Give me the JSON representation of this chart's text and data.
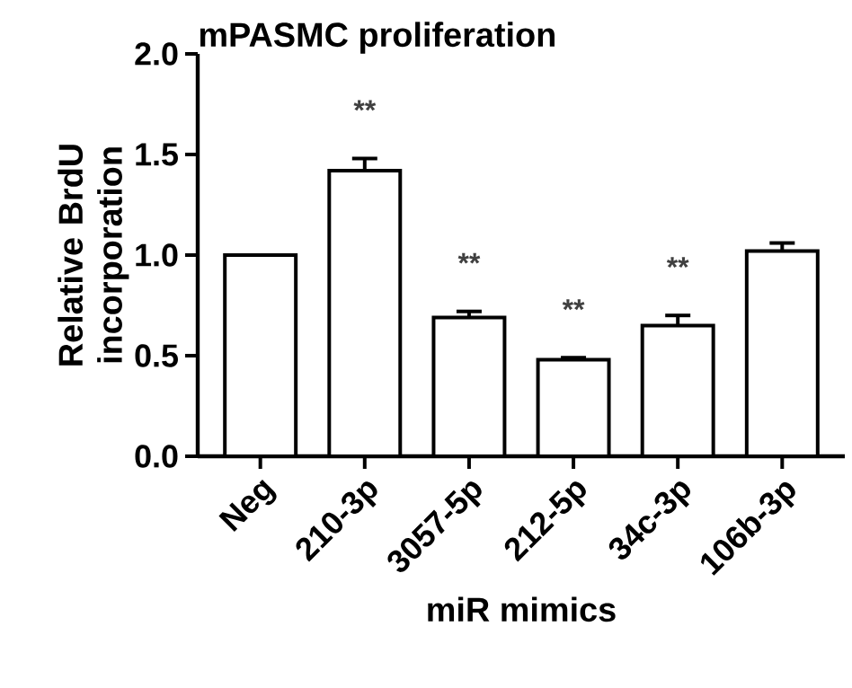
{
  "chart_data": {
    "type": "bar",
    "title": "mPASMC proliferation",
    "xlabel": "miR mimics",
    "ylabel": "Relative BrdU incorporation",
    "categories": [
      "Neg",
      "210-3p",
      "3057-5p",
      "212-5p",
      "34c-3p",
      "106b-3p"
    ],
    "values": [
      1.0,
      1.42,
      0.69,
      0.48,
      0.65,
      1.02
    ],
    "errors": [
      null,
      0.06,
      0.03,
      0.01,
      0.05,
      0.04
    ],
    "color": "#ffffff",
    "ylim": [
      0,
      2.0
    ],
    "yticks": [
      {
        "value": 0,
        "label": "0.0"
      },
      {
        "value": 0.5,
        "label": "0.5"
      },
      {
        "value": 1.0,
        "label": "1.0"
      },
      {
        "value": 1.5,
        "label": "1.5"
      },
      {
        "value": 2.0,
        "label": "2.0"
      }
    ],
    "annotations": [
      "**",
      "**",
      "**",
      "**"
    ]
  }
}
